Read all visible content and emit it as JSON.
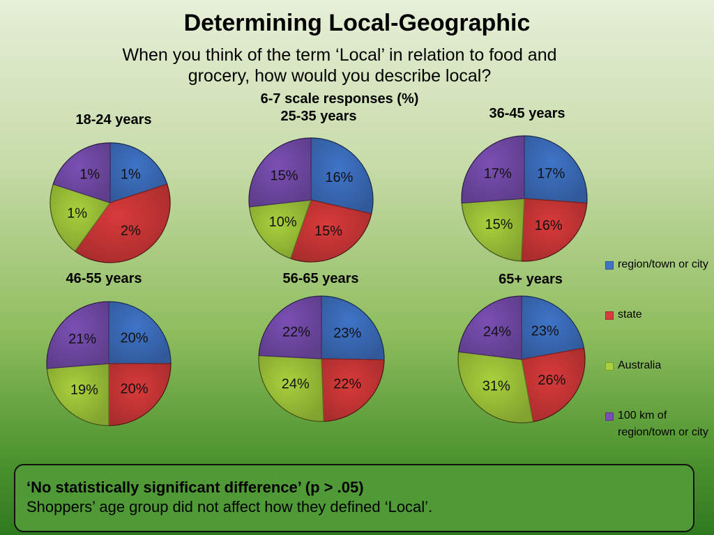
{
  "title": "Determining Local-Geographic",
  "subtitle": "When you think of the term ‘Local’ in relation to food and grocery, how would you describe local?",
  "scale_note": "6-7 scale responses (%)",
  "legend": [
    {
      "label": "region/town or city",
      "color": "#3f74c7",
      "icon": "square"
    },
    {
      "label": "state",
      "color": "#d93a3a",
      "icon": "square"
    },
    {
      "label": "Australia",
      "color": "#a8d13c",
      "icon": "square"
    },
    {
      "label": "100 km of region/town or city",
      "color": "#7a4fb3",
      "icon": "square"
    }
  ],
  "footnote": {
    "bold": "‘No statistically significant difference’ (p > .05)",
    "text": "Shoppers’ age group did not affect how they defined ‘Local’."
  },
  "chart_data": [
    {
      "type": "pie",
      "title": "18-24 years",
      "categories": [
        "region/town or city",
        "state",
        "Australia",
        "100 km of region/town or city"
      ],
      "values": [
        1,
        2,
        1,
        1
      ],
      "labels": [
        "1%",
        "2%",
        "1%",
        "1%"
      ]
    },
    {
      "type": "pie",
      "title": "25-35 years",
      "categories": [
        "region/town or city",
        "state",
        "Australia",
        "100 km of region/town or city"
      ],
      "values": [
        16,
        15,
        10,
        15
      ],
      "labels": [
        "16%",
        "15%",
        "10%",
        "15%"
      ]
    },
    {
      "type": "pie",
      "title": "36-45 years",
      "categories": [
        "region/town or city",
        "state",
        "Australia",
        "100 km of region/town or city"
      ],
      "values": [
        17,
        16,
        15,
        17
      ],
      "labels": [
        "17%",
        "16%",
        "15%",
        "17%"
      ]
    },
    {
      "type": "pie",
      "title": "46-55 years",
      "categories": [
        "region/town or city",
        "state",
        "Australia",
        "100 km of region/town or city"
      ],
      "values": [
        20,
        20,
        19,
        21
      ],
      "labels": [
        "20%",
        "20%",
        "19%",
        "21%"
      ]
    },
    {
      "type": "pie",
      "title": "56-65 years",
      "categories": [
        "region/town or city",
        "state",
        "Australia",
        "100 km of region/town or city"
      ],
      "values": [
        23,
        22,
        24,
        22
      ],
      "labels": [
        "23%",
        "22%",
        "24%",
        "22%"
      ]
    },
    {
      "type": "pie",
      "title": "65+ years",
      "categories": [
        "region/town or city",
        "state",
        "Australia",
        "100 km of region/town or city"
      ],
      "values": [
        23,
        26,
        31,
        24
      ],
      "labels": [
        "23%",
        "26%",
        "31%",
        "24%"
      ]
    }
  ]
}
